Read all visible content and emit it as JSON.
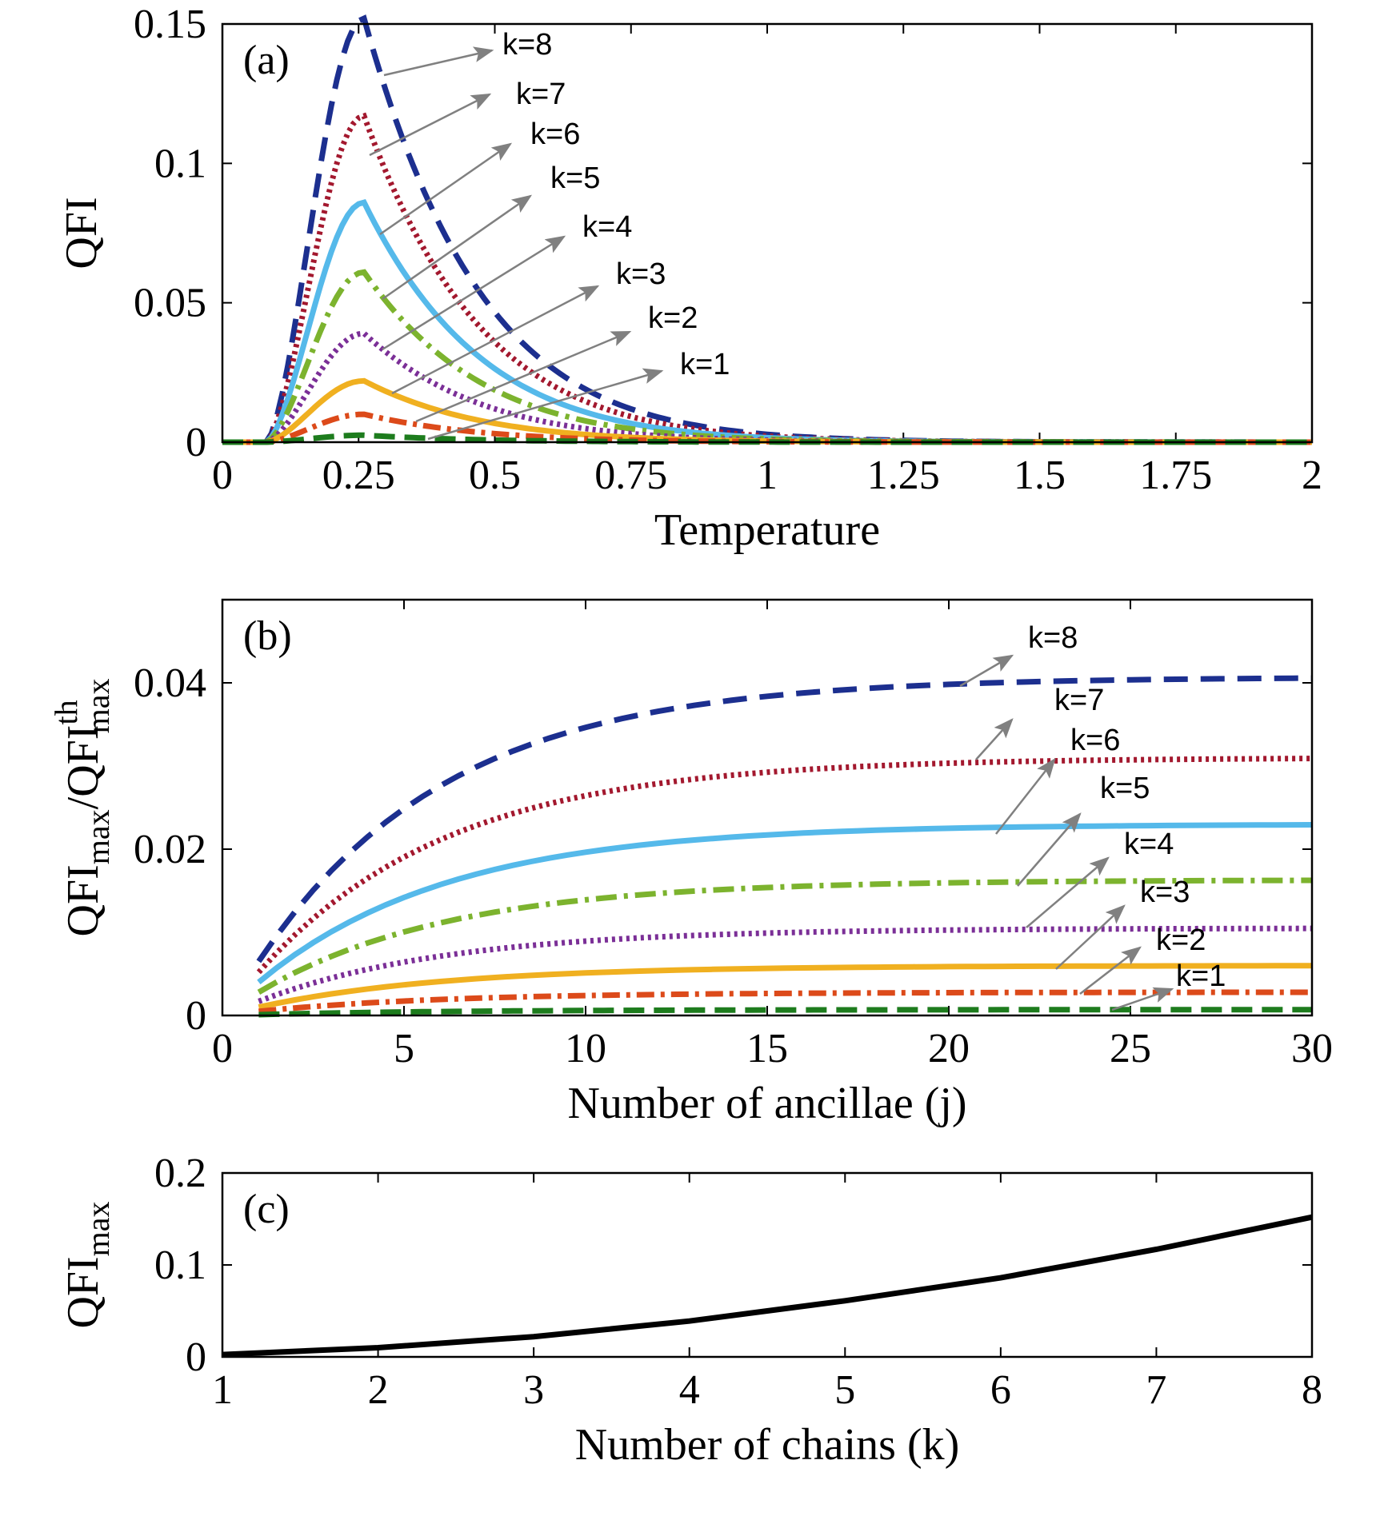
{
  "colors": {
    "k8": "#1c2f8f",
    "k7": "#a3182e",
    "k6": "#55b9ea",
    "k5": "#7cb32e",
    "k4": "#7b2f97",
    "k3": "#f0b020",
    "k2": "#dc4a1a",
    "k1": "#1d7c1d",
    "arrow": "#808080",
    "axis": "#000000",
    "line_c": "#000000"
  },
  "chart_data": [
    {
      "panel": "(a)",
      "type": "line",
      "xlabel": "Temperature",
      "ylabel": "QFI",
      "xlim": [
        0,
        2
      ],
      "ylim": [
        0,
        0.15
      ],
      "x_ticks": [
        "0",
        "0.25",
        "0.5",
        "0.75",
        "1",
        "1.25",
        "1.5",
        "1.75",
        "2"
      ],
      "y_ticks": [
        "0",
        "0.05",
        "0.1",
        "0.15"
      ],
      "series": [
        {
          "name": "k=8",
          "peak_x": 0.26,
          "peak_y": 0.152
        },
        {
          "name": "k=7",
          "peak_x": 0.26,
          "peak_y": 0.117
        },
        {
          "name": "k=6",
          "peak_x": 0.26,
          "peak_y": 0.086
        },
        {
          "name": "k=5",
          "peak_x": 0.26,
          "peak_y": 0.061
        },
        {
          "name": "k=4",
          "peak_x": 0.26,
          "peak_y": 0.039
        },
        {
          "name": "k=3",
          "peak_x": 0.26,
          "peak_y": 0.022
        },
        {
          "name": "k=2",
          "peak_x": 0.26,
          "peak_y": 0.01
        },
        {
          "name": "k=1",
          "peak_x": 0.26,
          "peak_y": 0.0025
        }
      ]
    },
    {
      "panel": "(b)",
      "type": "line",
      "xlabel": "Number of ancillae (j)",
      "ylabel_main": "QFI",
      "ylabel_sub1": "max",
      "ylabel_mid": "/QFI",
      "ylabel_sup": "th",
      "ylabel_sub2": "max",
      "xlim": [
        0,
        30
      ],
      "ylim": [
        0,
        0.05
      ],
      "x_ticks": [
        "0",
        "5",
        "10",
        "15",
        "20",
        "25",
        "30"
      ],
      "y_ticks": [
        "0",
        "0.02",
        "0.04"
      ],
      "series": [
        {
          "name": "k=8",
          "start": 0.0065,
          "end": 0.0407
        },
        {
          "name": "k=7",
          "start": 0.0052,
          "end": 0.031
        },
        {
          "name": "k=6",
          "start": 0.004,
          "end": 0.023
        },
        {
          "name": "k=5",
          "start": 0.0028,
          "end": 0.0163
        },
        {
          "name": "k=4",
          "start": 0.0017,
          "end": 0.0105
        },
        {
          "name": "k=3",
          "start": 0.001,
          "end": 0.006
        },
        {
          "name": "k=2",
          "start": 0.0005,
          "end": 0.0028
        },
        {
          "name": "k=1",
          "start": 0.0001,
          "end": 0.0007
        }
      ]
    },
    {
      "panel": "(c)",
      "type": "line",
      "xlabel": "Number of chains (k)",
      "ylabel_main": "QFI",
      "ylabel_sub": "max",
      "xlim": [
        1,
        8
      ],
      "ylim": [
        0,
        0.2
      ],
      "x_ticks": [
        "1",
        "2",
        "3",
        "4",
        "5",
        "6",
        "7",
        "8"
      ],
      "y_ticks": [
        "0",
        "0.1",
        "0.2"
      ],
      "x": [
        1,
        2,
        3,
        4,
        5,
        6,
        7,
        8
      ],
      "y": [
        0.0025,
        0.01,
        0.022,
        0.039,
        0.061,
        0.086,
        0.117,
        0.152
      ]
    }
  ]
}
